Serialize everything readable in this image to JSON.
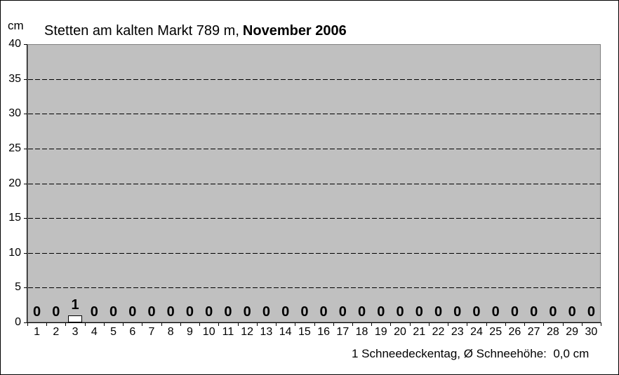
{
  "header": {
    "unit_label": "cm",
    "title_regular": "Stetten am kalten Markt 789 m,",
    "title_bold": "November 2006"
  },
  "footer": {
    "caption": "1 Schneedeckentag, Ø Schneehöhe:  0,0 cm"
  },
  "chart_data": {
    "type": "bar",
    "title": "Stetten am kalten Markt 789 m, November 2006",
    "xlabel": "",
    "ylabel": "cm",
    "categories": [
      1,
      2,
      3,
      4,
      5,
      6,
      7,
      8,
      9,
      10,
      11,
      12,
      13,
      14,
      15,
      16,
      17,
      18,
      19,
      20,
      21,
      22,
      23,
      24,
      25,
      26,
      27,
      28,
      29,
      30
    ],
    "values": [
      0,
      0,
      1,
      0,
      0,
      0,
      0,
      0,
      0,
      0,
      0,
      0,
      0,
      0,
      0,
      0,
      0,
      0,
      0,
      0,
      0,
      0,
      0,
      0,
      0,
      0,
      0,
      0,
      0,
      0
    ],
    "ylim": [
      0,
      40
    ],
    "ytick_step": 5,
    "yticks": [
      0,
      5,
      10,
      15,
      20,
      25,
      30,
      35,
      40
    ],
    "grid": "horizontal-dashed",
    "legend": "none",
    "value_labels_shown": true,
    "annotation": "1 Schneedeckentag, Ø Schneehöhe:  0,0 cm",
    "colors": {
      "plot_bg": "#c0c0c0",
      "plot_border": "#808080",
      "bar_fill": "#ffffff",
      "bar_border": "#000000",
      "grid_color": "#000000",
      "axis_color": "#000000",
      "text_color": "#000000"
    }
  }
}
